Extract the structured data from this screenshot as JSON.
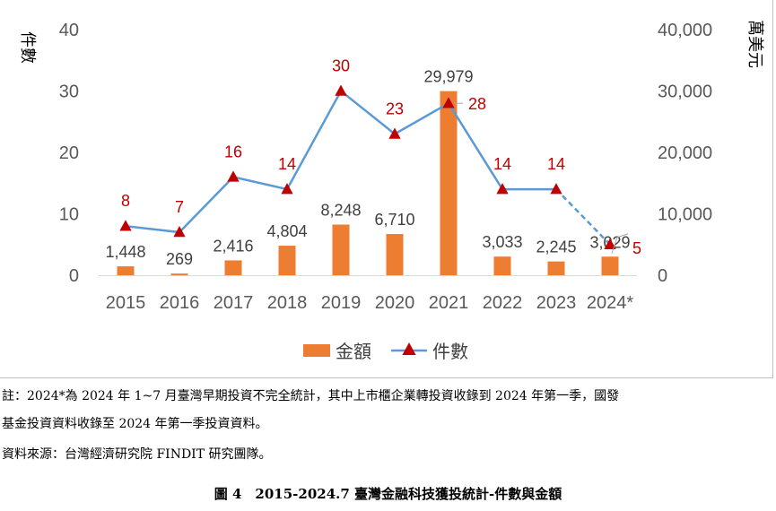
{
  "chart_data": {
    "type": "bar+line",
    "categories": [
      "2015",
      "2016",
      "2017",
      "2018",
      "2019",
      "2020",
      "2021",
      "2022",
      "2023",
      "2024*"
    ],
    "series": [
      {
        "name": "金額",
        "type": "bar",
        "axis": "right",
        "color": "#ed7d31",
        "values": [
          1448,
          269,
          2416,
          4804,
          8248,
          6710,
          29979,
          3033,
          2245,
          3029
        ],
        "labels": [
          "1,448",
          "269",
          "2,416",
          "4,804",
          "8,248",
          "6,710",
          "29,979",
          "3,033",
          "2,245",
          "3,029"
        ]
      },
      {
        "name": "件數",
        "type": "line",
        "axis": "left",
        "color": "#5b9bd5",
        "marker_color": "#c00000",
        "values": [
          8,
          7,
          16,
          14,
          30,
          23,
          28,
          14,
          14,
          5
        ],
        "labels": [
          "8",
          "7",
          "16",
          "14",
          "30",
          "23",
          "28",
          "14",
          "14",
          "5"
        ],
        "last_segment_dashed": true
      }
    ],
    "ylabel_left": "件數",
    "ylabel_right": "萬美元",
    "ylim_left": [
      0,
      40
    ],
    "ylim_right": [
      0,
      40000
    ],
    "left_ticks": [
      "0",
      "10",
      "20",
      "30",
      "40"
    ],
    "right_ticks": [
      "0",
      "10,000",
      "20,000",
      "30,000",
      "40,000"
    ],
    "legend_position": "bottom",
    "grid": false
  },
  "notes": {
    "line1": "註：2024*為 2024 年 1~7 月臺灣早期投資不完全統計，其中上市櫃企業轉投資收錄到 2024 年第一季，國發",
    "line2": "基金投資資料收錄至 2024 年第一季投資資料。",
    "source": "資料來源：台灣經濟研究院 FINDIT 研究團隊。"
  },
  "caption": "圖 4　2015-2024.7 臺灣金融科技獲投統計-件數與金額"
}
